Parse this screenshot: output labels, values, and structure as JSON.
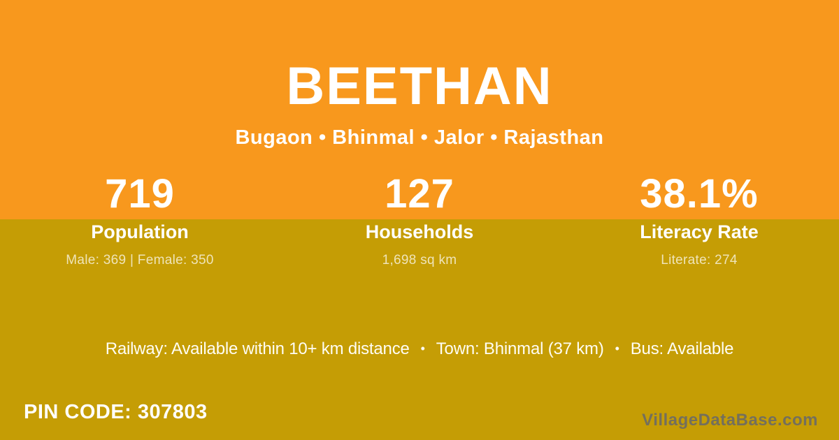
{
  "theme": {
    "orange": "#F8981D",
    "mustard": "#C59D05",
    "text_white": "#FFFFFF",
    "subtext_color": "rgba(255,255,255,0.72)",
    "watermark_color": "rgba(105,105,105,0.88)"
  },
  "header": {
    "title": "BEETHAN",
    "subtitle": "Bugaon • Bhinmal • Jalor • Rajasthan"
  },
  "stats": [
    {
      "value": "719",
      "label": "Population",
      "detail": "Male: 369 | Female: 350"
    },
    {
      "value": "127",
      "label": "Households",
      "detail": "1,698 sq km"
    },
    {
      "value": "38.1%",
      "label": "Literacy Rate",
      "detail": "Literate: 274"
    }
  ],
  "transport": {
    "railway": "Railway: Available within 10+ km distance",
    "town": "Town: Bhinmal (37 km)",
    "bus": "Bus: Available",
    "separator": "•"
  },
  "footer": {
    "pin_code": "PIN CODE: 307803",
    "watermark": "VillageDataBase.com"
  }
}
